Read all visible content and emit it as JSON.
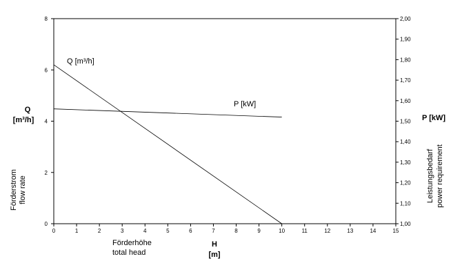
{
  "chart_data": {
    "type": "line",
    "x_axis": {
      "range": [
        0,
        15
      ],
      "ticks": [
        "0",
        "1",
        "2",
        "3",
        "4",
        "5",
        "6",
        "7",
        "8",
        "9",
        "10",
        "11",
        "12",
        "13",
        "14",
        "15"
      ],
      "label_de": "Förderhöhe",
      "label_en": "total head",
      "symbol": "H",
      "unit": "[m]"
    },
    "y_axis_left": {
      "range": [
        0,
        8
      ],
      "ticks": [
        "0",
        "2",
        "4",
        "6",
        "8"
      ],
      "symbol": "Q",
      "unit": "[m³/h]",
      "label_de": "Förderstrom",
      "label_en": "flow rate"
    },
    "y_axis_right": {
      "range": [
        1.0,
        2.0
      ],
      "ticks": [
        "1,00",
        "1,10",
        "1,20",
        "1,30",
        "1,40",
        "1,50",
        "1,60",
        "1,70",
        "1,80",
        "1,90",
        "2,00"
      ],
      "symbol": "P [kW]",
      "label_de": "Leistungsbedarf",
      "label_en": "power requirement"
    },
    "series": [
      {
        "name": "Q [m³/h]",
        "axis": "left",
        "x": [
          0,
          10
        ],
        "y": [
          6.2,
          0
        ]
      },
      {
        "name": "P [kW]",
        "axis": "right",
        "x": [
          0,
          10
        ],
        "y": [
          1.56,
          1.52
        ]
      }
    ],
    "grid": false,
    "legend": "inline labels"
  }
}
